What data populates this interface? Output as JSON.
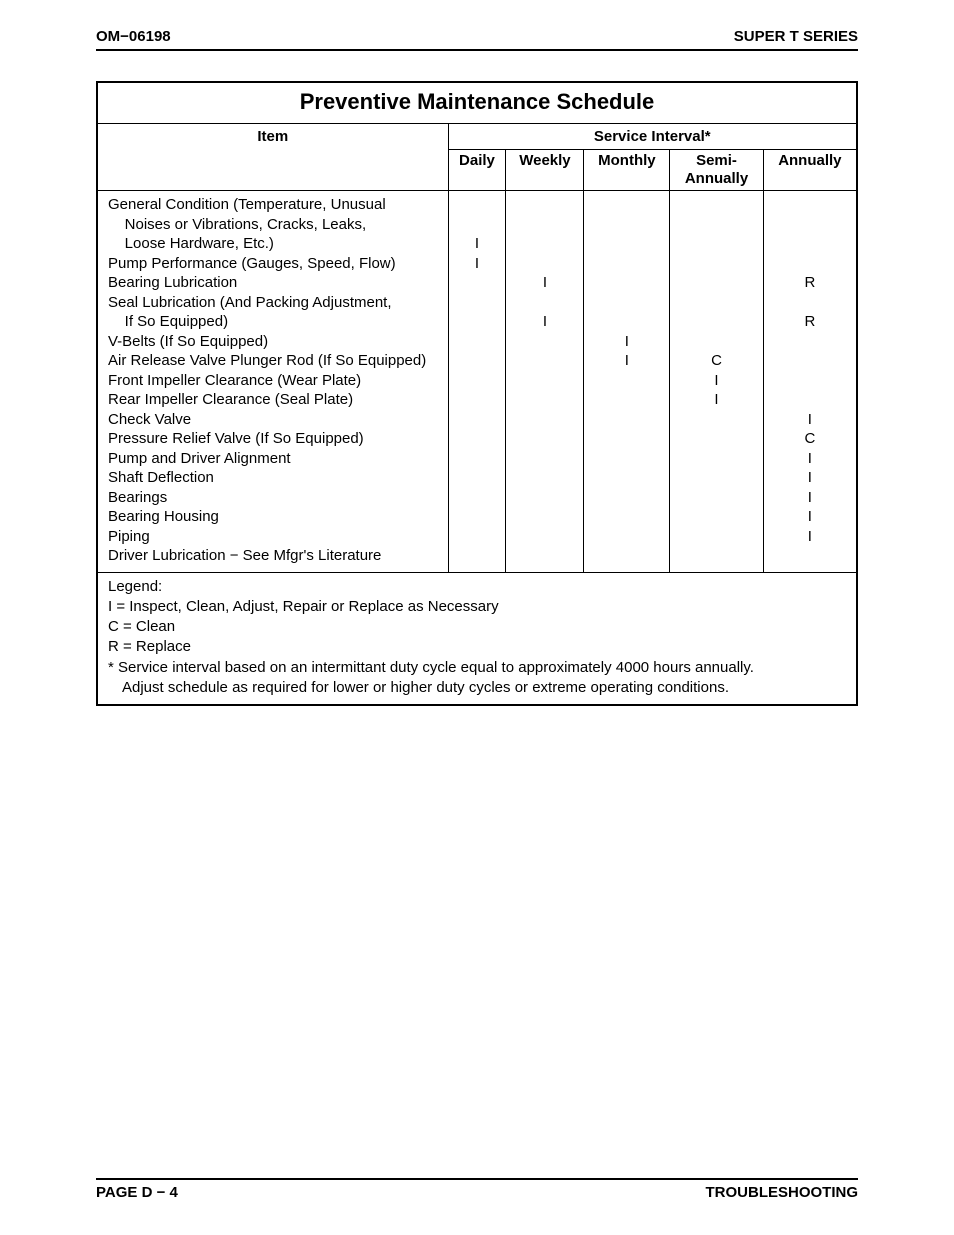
{
  "header": {
    "left": "OM−06198",
    "right": "SUPER T SERIES"
  },
  "title": "Preventive Maintenance Schedule",
  "columns": {
    "item": "Item",
    "interval_group": "Service Interval*",
    "intervals": [
      "Daily",
      "Weekly",
      "Monthly",
      "Semi-\nAnnually",
      "Annually"
    ]
  },
  "rows": [
    {
      "item": "General Condition (Temperature, Unusual",
      "daily": "",
      "weekly": "",
      "monthly": "",
      "semi": "",
      "annual": ""
    },
    {
      "item": "    Noises or Vibrations, Cracks, Leaks,",
      "daily": "",
      "weekly": "",
      "monthly": "",
      "semi": "",
      "annual": ""
    },
    {
      "item": "    Loose Hardware, Etc.)",
      "daily": "I",
      "weekly": "",
      "monthly": "",
      "semi": "",
      "annual": ""
    },
    {
      "item": "Pump Performance (Gauges, Speed, Flow)",
      "daily": "I",
      "weekly": "",
      "monthly": "",
      "semi": "",
      "annual": ""
    },
    {
      "item": "Bearing Lubrication",
      "daily": "",
      "weekly": "I",
      "monthly": "",
      "semi": "",
      "annual": "R"
    },
    {
      "item": "Seal Lubrication (And Packing Adjustment,",
      "daily": "",
      "weekly": "",
      "monthly": "",
      "semi": "",
      "annual": ""
    },
    {
      "item": "    If So Equipped)",
      "daily": "",
      "weekly": "I",
      "monthly": "",
      "semi": "",
      "annual": "R"
    },
    {
      "item": "V-Belts (If So Equipped)",
      "daily": "",
      "weekly": "",
      "monthly": "I",
      "semi": "",
      "annual": ""
    },
    {
      "item": "Air Release Valve Plunger Rod (If So Equipped)",
      "daily": "",
      "weekly": "",
      "monthly": "I",
      "semi": "C",
      "annual": ""
    },
    {
      "item": "Front Impeller Clearance (Wear Plate)",
      "daily": "",
      "weekly": "",
      "monthly": "",
      "semi": "I",
      "annual": ""
    },
    {
      "item": "Rear Impeller Clearance (Seal Plate)",
      "daily": "",
      "weekly": "",
      "monthly": "",
      "semi": "I",
      "annual": ""
    },
    {
      "item": "Check Valve",
      "daily": "",
      "weekly": "",
      "monthly": "",
      "semi": "",
      "annual": "I"
    },
    {
      "item": "Pressure Relief Valve (If So Equipped)",
      "daily": "",
      "weekly": "",
      "monthly": "",
      "semi": "",
      "annual": "C"
    },
    {
      "item": "Pump and Driver Alignment",
      "daily": "",
      "weekly": "",
      "monthly": "",
      "semi": "",
      "annual": "I"
    },
    {
      "item": "Shaft Deflection",
      "daily": "",
      "weekly": "",
      "monthly": "",
      "semi": "",
      "annual": "I"
    },
    {
      "item": "Bearings",
      "daily": "",
      "weekly": "",
      "monthly": "",
      "semi": "",
      "annual": "I"
    },
    {
      "item": "Bearing Housing",
      "daily": "",
      "weekly": "",
      "monthly": "",
      "semi": "",
      "annual": "I"
    },
    {
      "item": "Piping",
      "daily": "",
      "weekly": "",
      "monthly": "",
      "semi": "",
      "annual": "I"
    },
    {
      "item": "Driver Lubrication − See Mfgr's Literature",
      "daily": "",
      "weekly": "",
      "monthly": "",
      "semi": "",
      "annual": ""
    }
  ],
  "legend": {
    "title": "Legend:",
    "lines": [
      " I = Inspect, Clean, Adjust, Repair or Replace as Necessary",
      "C = Clean",
      "R = Replace"
    ],
    "note_first": "*  Service interval based on an intermittant duty cycle equal to approximately 4000 hours annually.",
    "note_second": "Adjust schedule as required for lower or higher duty cycles or extreme operating conditions."
  },
  "footer": {
    "left": "PAGE D − 4",
    "right": "TROUBLESHOOTING"
  }
}
